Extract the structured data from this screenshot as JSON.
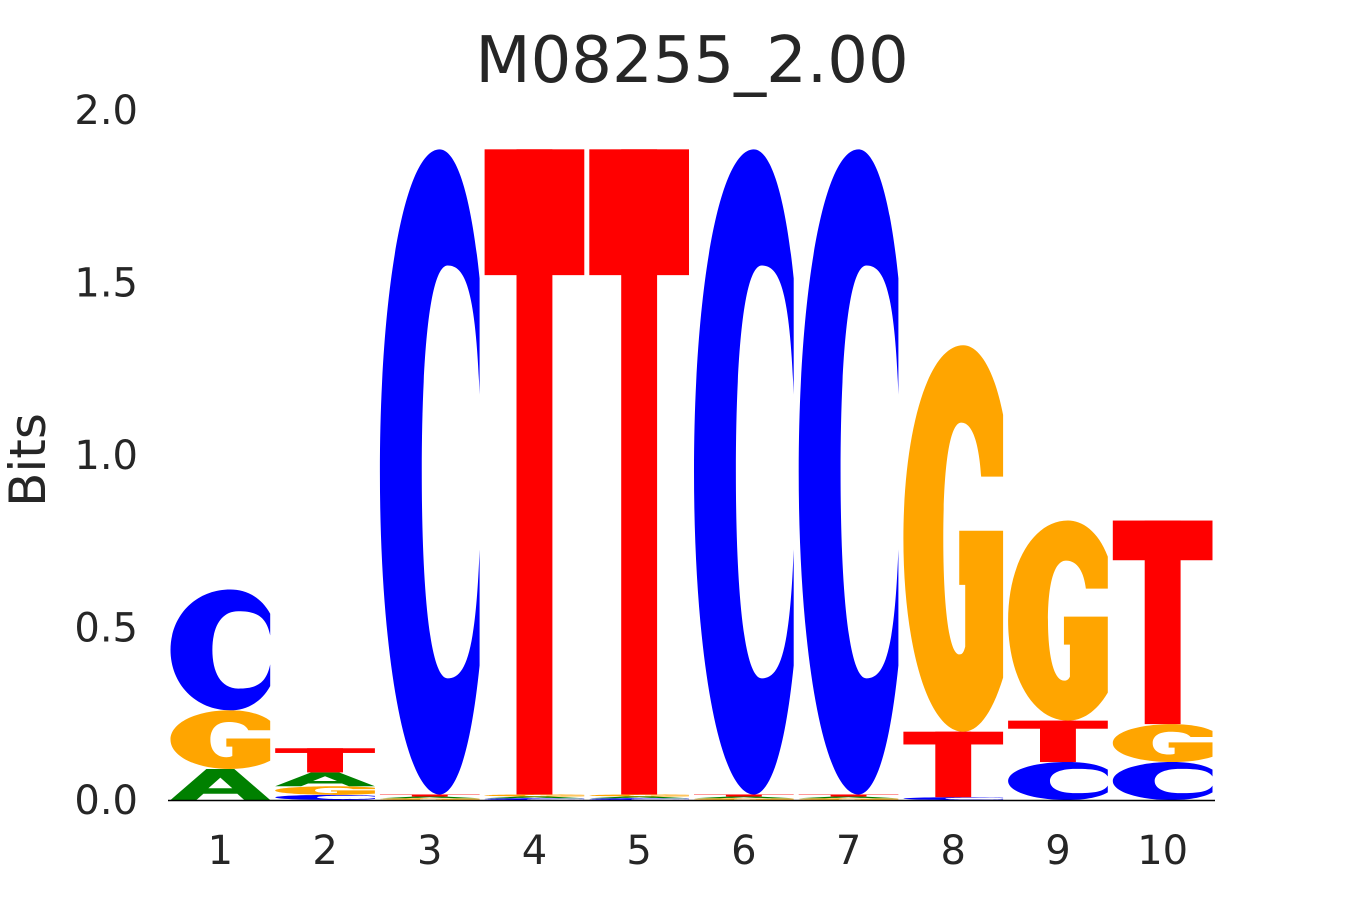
{
  "chart_data": {
    "type": "sequence-logo",
    "title": "M08255_2.00",
    "ylabel": "Bits",
    "xlabel": "",
    "ylim": [
      0,
      2.0
    ],
    "yticks": [
      "0.0",
      "0.5",
      "1.0",
      "1.5",
      "2.0"
    ],
    "ytick_values": [
      0.0,
      0.5,
      1.0,
      1.5,
      2.0
    ],
    "grid": false,
    "colors": {
      "A": "#008000",
      "C": "#0000ff",
      "G": "#ffa500",
      "T": "#ff0000"
    },
    "positions": [
      {
        "label": "1",
        "letters": [
          {
            "base": "A",
            "bits": 0.09
          },
          {
            "base": "G",
            "bits": 0.17
          },
          {
            "base": "C",
            "bits": 0.35
          }
        ]
      },
      {
        "label": "2",
        "letters": [
          {
            "base": "C",
            "bits": 0.015
          },
          {
            "base": "G",
            "bits": 0.025
          },
          {
            "base": "A",
            "bits": 0.04
          },
          {
            "base": "T",
            "bits": 0.07
          }
        ]
      },
      {
        "label": "3",
        "letters": [
          {
            "base": "G",
            "bits": 0.005
          },
          {
            "base": "A",
            "bits": 0.005
          },
          {
            "base": "T",
            "bits": 0.006
          },
          {
            "base": "C",
            "bits": 1.87
          }
        ]
      },
      {
        "label": "4",
        "letters": [
          {
            "base": "C",
            "bits": 0.005
          },
          {
            "base": "A",
            "bits": 0.005
          },
          {
            "base": "G",
            "bits": 0.006
          },
          {
            "base": "T",
            "bits": 1.87
          }
        ]
      },
      {
        "label": "5",
        "letters": [
          {
            "base": "C",
            "bits": 0.005
          },
          {
            "base": "A",
            "bits": 0.005
          },
          {
            "base": "G",
            "bits": 0.006
          },
          {
            "base": "T",
            "bits": 1.87
          }
        ]
      },
      {
        "label": "6",
        "letters": [
          {
            "base": "G",
            "bits": 0.005
          },
          {
            "base": "A",
            "bits": 0.005
          },
          {
            "base": "T",
            "bits": 0.006
          },
          {
            "base": "C",
            "bits": 1.87
          }
        ]
      },
      {
        "label": "7",
        "letters": [
          {
            "base": "G",
            "bits": 0.005
          },
          {
            "base": "A",
            "bits": 0.005
          },
          {
            "base": "T",
            "bits": 0.006
          },
          {
            "base": "C",
            "bits": 1.87
          }
        ]
      },
      {
        "label": "8",
        "letters": [
          {
            "base": "C",
            "bits": 0.008
          },
          {
            "base": "T",
            "bits": 0.19
          },
          {
            "base": "G",
            "bits": 1.12
          }
        ]
      },
      {
        "label": "9",
        "letters": [
          {
            "base": "C",
            "bits": 0.11
          },
          {
            "base": "T",
            "bits": 0.12
          },
          {
            "base": "G",
            "bits": 0.58
          }
        ]
      },
      {
        "label": "10",
        "letters": [
          {
            "base": "C",
            "bits": 0.11
          },
          {
            "base": "G",
            "bits": 0.11
          },
          {
            "base": "T",
            "bits": 0.59
          }
        ]
      }
    ]
  }
}
